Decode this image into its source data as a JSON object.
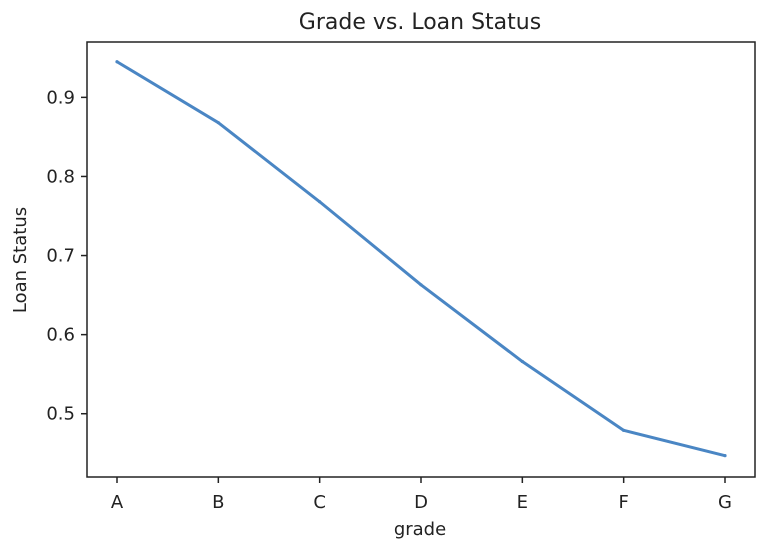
{
  "chart_data": {
    "type": "line",
    "title": "Grade vs. Loan Status",
    "xlabel": "grade",
    "ylabel": "Loan Status",
    "categories": [
      "A",
      "B",
      "C",
      "D",
      "E",
      "F",
      "G"
    ],
    "series": [
      {
        "values": [
          0.945,
          0.868,
          0.768,
          0.663,
          0.566,
          0.479,
          0.447
        ],
        "color": "#4a86c4"
      }
    ],
    "y_ticks": [
      0.5,
      0.6,
      0.7,
      0.8,
      0.9
    ],
    "y_tick_labels": [
      "0.5",
      "0.6",
      "0.7",
      "0.8",
      "0.9"
    ],
    "ylim": [
      0.42,
      0.97
    ],
    "grid": false,
    "legend": "none"
  }
}
